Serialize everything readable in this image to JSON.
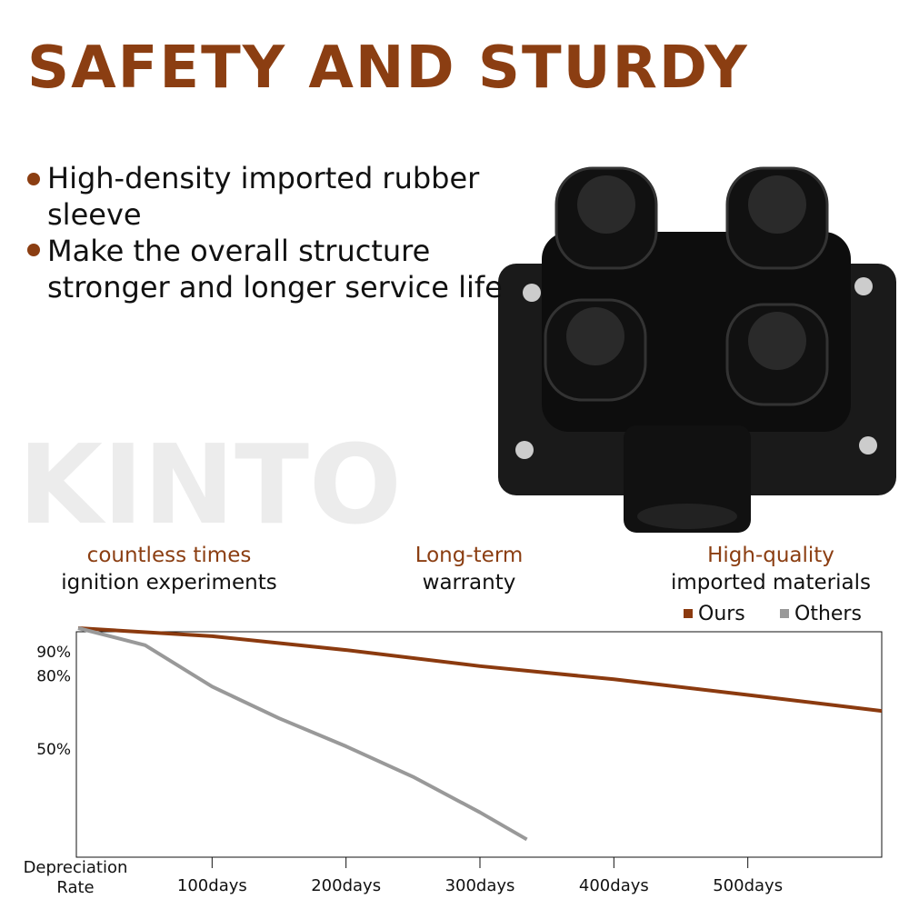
{
  "header": {
    "title": "SAFETY AND STURDY",
    "watermark": "KINTO"
  },
  "bullets": [
    "High-density imported rubber sleeve",
    "Make the overall structure stronger and longer service life"
  ],
  "features": [
    {
      "highlight": "countless times",
      "text": "ignition experiments"
    },
    {
      "highlight": "Long-term",
      "text": "warranty"
    },
    {
      "highlight": "High-quality",
      "text": "imported materials"
    }
  ],
  "chart_data": {
    "type": "line",
    "y_label": "Depreciation Rate",
    "series": [
      {
        "name": "Ours",
        "color": "#8b3a0f",
        "x": [
          0,
          100,
          200,
          300,
          400,
          500,
          600
        ],
        "values": [
          100,
          96.7,
          91,
          84.4,
          79,
          72.6,
          66
        ]
      },
      {
        "name": "Others",
        "color": "#999999",
        "x": [
          0,
          50,
          100,
          150,
          200,
          250,
          300,
          335
        ],
        "values": [
          100,
          93,
          76,
          63,
          51.5,
          39,
          24.4,
          13.3
        ]
      }
    ],
    "xlim": [
      0,
      600
    ],
    "ylim": [
      6,
      100
    ],
    "xticks": [
      {
        "value": 100,
        "label": "100days"
      },
      {
        "value": 200,
        "label": "200days"
      },
      {
        "value": 300,
        "label": "300days"
      },
      {
        "value": 400,
        "label": "400days"
      },
      {
        "value": 500,
        "label": "500days"
      }
    ],
    "yticks": [
      {
        "value": 90,
        "label": "90%"
      },
      {
        "value": 80,
        "label": "80%"
      },
      {
        "value": 50,
        "label": "50%"
      }
    ],
    "legend": "top-right",
    "grid": false
  }
}
